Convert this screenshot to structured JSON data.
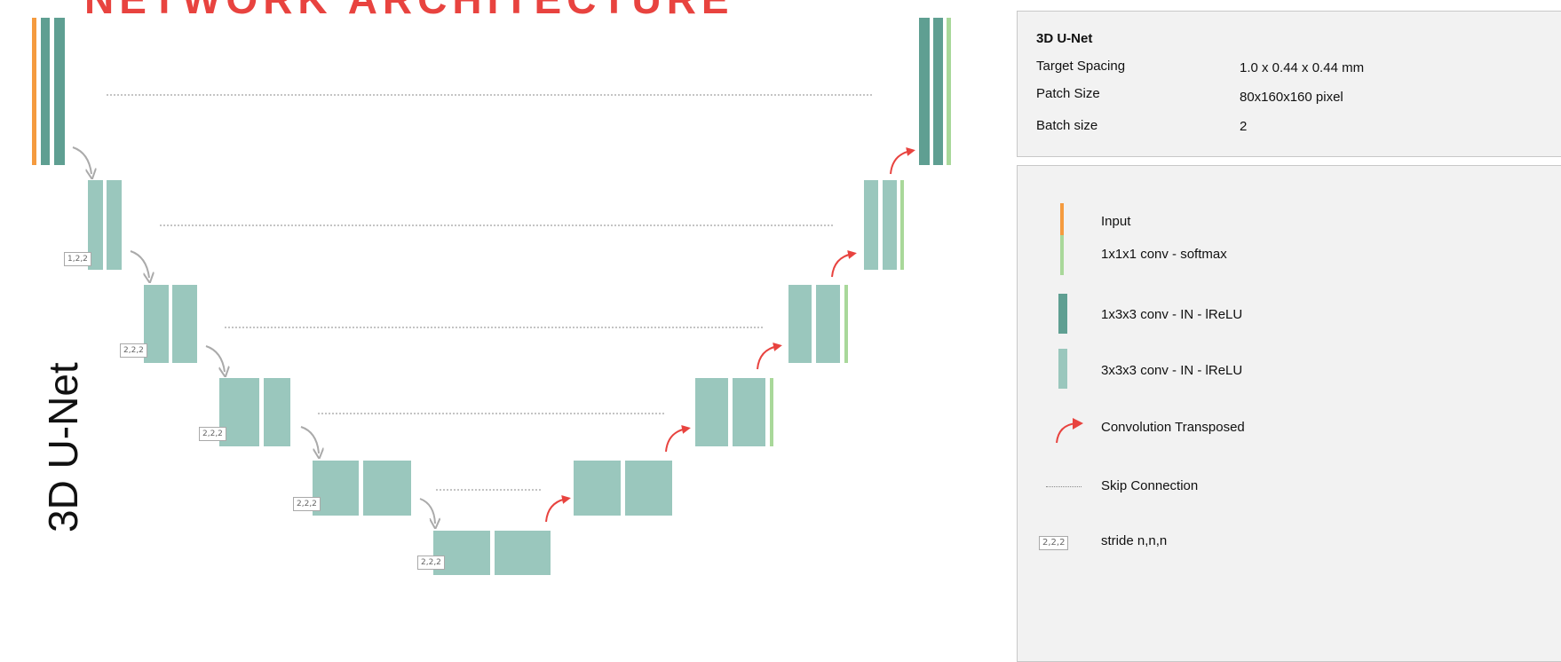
{
  "banner": {
    "text": "NETWORK ARCHITECTURE"
  },
  "side_title": "3D U-Net",
  "config": {
    "title": "3D U-Net",
    "rows": [
      {
        "label": "Target Spacing",
        "value": "1.0 x 0.44 x 0.44 mm"
      },
      {
        "label": "Patch Size",
        "value": "80x160x160 pixel"
      },
      {
        "label": "Batch size",
        "value": "2"
      }
    ]
  },
  "legend": {
    "items": [
      {
        "label": "Input",
        "symbol": "orange-bar"
      },
      {
        "label": "1x1x1 conv - softmax",
        "symbol": "light-green-bar"
      },
      {
        "label": "1x3x3 conv - IN - lReLU",
        "symbol": "dark-teal-bar"
      },
      {
        "label": "3x3x3 conv - IN - lReLU",
        "symbol": "light-teal-bar"
      },
      {
        "label": "Convolution Transposed",
        "symbol": "red-arrow-icon"
      },
      {
        "label": "Skip Connection",
        "symbol": "dotted-line"
      },
      {
        "label": "stride n,n,n",
        "symbol": "stride-box",
        "sample": "2,2,2"
      }
    ]
  },
  "strides": [
    "1,2,2",
    "2,2,2",
    "2,2,2",
    "2,2,2",
    "2,2,2"
  ],
  "colors": {
    "input": "#f59b3f",
    "softmax": "#a9d89a",
    "conv_1x3x3": "#5f9f92",
    "conv_3x3x3": "#9ac7bd",
    "transposed_arrow": "#e8433f",
    "down_arrow": "#aaaaaa",
    "skip_line": "#888888"
  }
}
